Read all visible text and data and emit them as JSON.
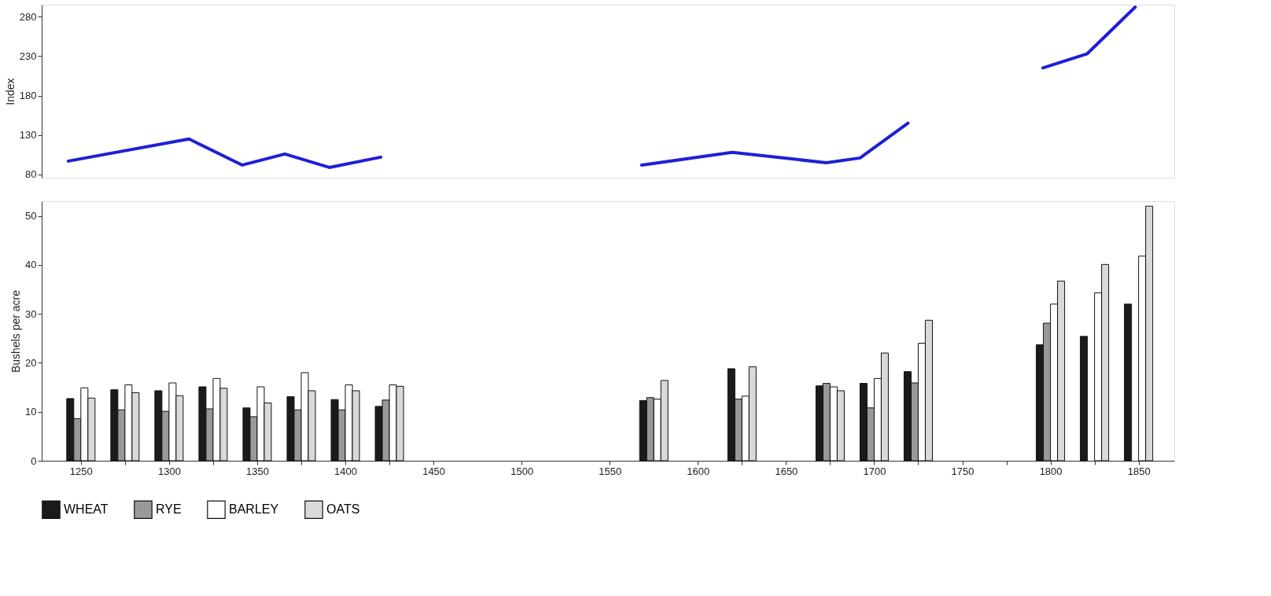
{
  "chart_data": [
    {
      "type": "line",
      "ylabel": "Index",
      "xlim": [
        1230,
        1868
      ],
      "ylim": [
        76,
        295
      ],
      "yticks": [
        80,
        130,
        180,
        230,
        280
      ],
      "tick_labels": "y",
      "grid": false,
      "legend": false,
      "series": [
        {
          "color": "#1f1fd6",
          "x": [
            1245,
            1313,
            1343,
            1367,
            1392,
            1421,
            1495,
            1568,
            1619,
            1672,
            1691,
            1718,
            1760,
            1794,
            1819,
            1846
          ],
          "values": [
            97,
            125,
            92,
            106,
            89,
            102,
            null,
            92,
            108,
            95,
            101,
            145,
            null,
            215,
            233,
            292
          ]
        }
      ]
    },
    {
      "type": "bar",
      "ylabel": "Bushels per acre",
      "xlim": [
        1230,
        1868
      ],
      "ylim": [
        0,
        53
      ],
      "yticks": [
        0,
        10,
        20,
        30,
        40,
        50
      ],
      "xticks": [
        1250,
        {
          "value": 1275,
          "label": null
        },
        1300,
        {
          "value": 1325,
          "label": null
        },
        1350,
        {
          "value": 1375,
          "label": null
        },
        1400,
        {
          "value": 1425,
          "label": null
        },
        1450,
        1500,
        1550,
        1600,
        {
          "value": 1625,
          "label": null
        },
        1650,
        {
          "value": 1675,
          "label": null
        },
        1700,
        {
          "value": 1725,
          "label": null
        },
        1750,
        {
          "value": 1775,
          "label": null
        },
        1800,
        {
          "value": 1825,
          "label": null
        },
        1850
      ],
      "x": [
        1250,
        1275,
        1300,
        1325,
        1350,
        1375,
        1400,
        1425,
        1575,
        1625,
        1675,
        1700,
        1725,
        1800,
        1825,
        1850
      ],
      "legend": "bottom",
      "grid": false,
      "series": [
        {
          "name": "WHEAT",
          "color": "#1a1a1a",
          "values": [
            12.7,
            14.5,
            14.3,
            15.1,
            10.8,
            13.1,
            12.5,
            11.1,
            12.3,
            18.8,
            15.3,
            15.8,
            18.2,
            23.7,
            25.4,
            32.0
          ]
        },
        {
          "name": "RYE",
          "color": "#999999",
          "values": [
            8.6,
            10.4,
            10.1,
            10.6,
            9.0,
            10.4,
            10.4,
            12.4,
            12.9,
            12.6,
            15.8,
            10.8,
            15.9,
            28.1,
            null,
            null
          ]
        },
        {
          "name": "BARLEY",
          "color": "#ffffff",
          "values": [
            14.9,
            15.5,
            15.9,
            16.8,
            15.1,
            18.0,
            15.5,
            15.5,
            12.6,
            13.2,
            15.1,
            16.8,
            24.0,
            32.0,
            34.3,
            41.8
          ]
        },
        {
          "name": "OATS",
          "color": "#d9d9d9",
          "values": [
            12.8,
            13.9,
            13.3,
            14.8,
            11.8,
            14.3,
            14.3,
            15.2,
            16.4,
            19.2,
            14.3,
            22.0,
            28.7,
            36.7,
            40.1,
            52.0
          ]
        }
      ]
    }
  ]
}
